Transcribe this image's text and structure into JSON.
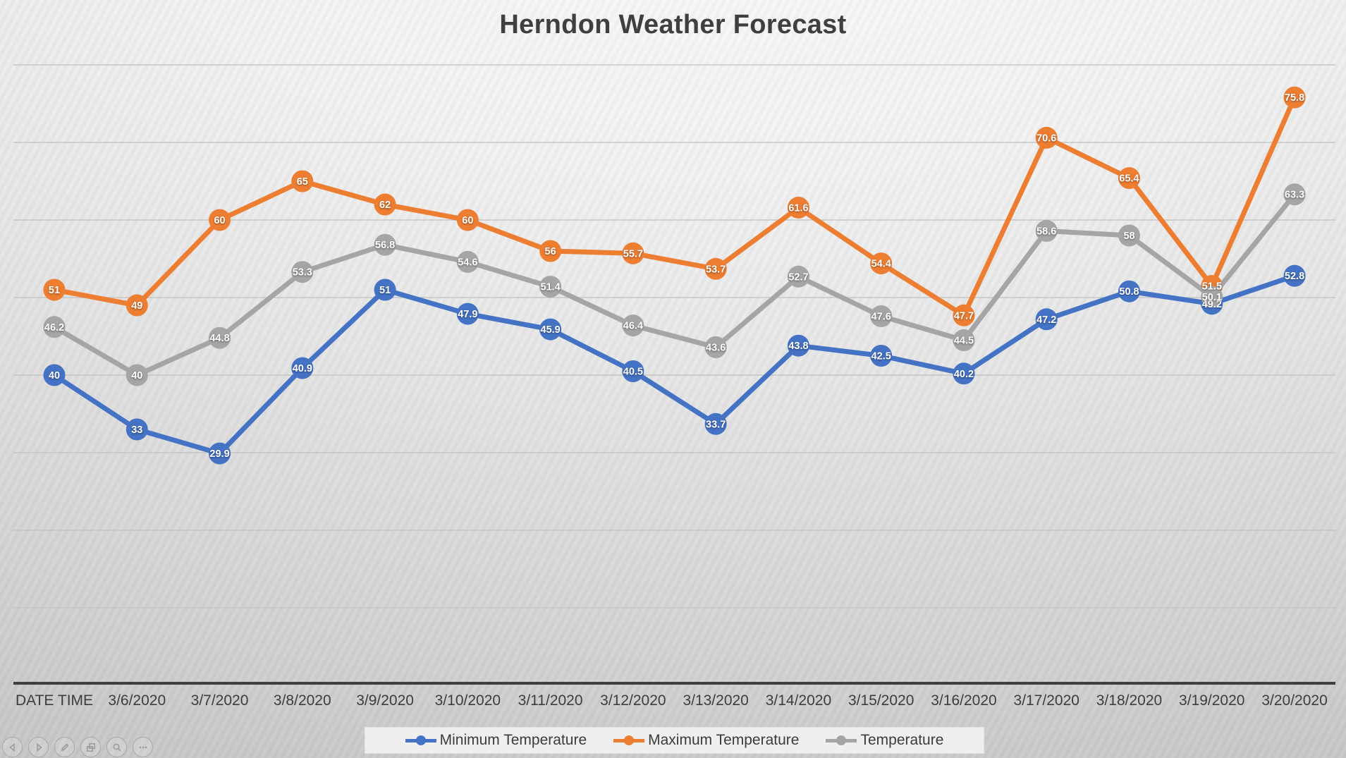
{
  "slide": {
    "title": "Herndon Weather Forecast"
  },
  "chart_data": {
    "type": "line",
    "title": "Herndon Weather Forecast",
    "categories": [
      "DATE TIME",
      "3/6/2020",
      "3/7/2020",
      "3/8/2020",
      "3/9/2020",
      "3/10/2020",
      "3/11/2020",
      "3/12/2020",
      "3/13/2020",
      "3/14/2020",
      "3/15/2020",
      "3/16/2020",
      "3/17/2020",
      "3/18/2020",
      "3/19/2020",
      "3/20/2020"
    ],
    "series": [
      {
        "name": "Minimum Temperature",
        "color": "#4472C4",
        "values": [
          40,
          33,
          29.9,
          40.9,
          51,
          47.9,
          45.9,
          40.5,
          33.7,
          43.8,
          42.5,
          40.2,
          47.2,
          50.8,
          49.2,
          52.8
        ]
      },
      {
        "name": "Maximum Temperature",
        "color": "#ED7D31",
        "values": [
          51,
          49,
          60,
          65,
          62,
          60,
          56,
          55.7,
          53.7,
          61.6,
          54.4,
          47.7,
          70.6,
          65.4,
          51.5,
          75.8
        ]
      },
      {
        "name": "Temperature",
        "color": "#A5A5A5",
        "values": [
          46.2,
          40,
          44.8,
          53.3,
          56.8,
          54.6,
          51.4,
          46.4,
          43.6,
          52.7,
          47.6,
          44.5,
          58.6,
          58,
          50.1,
          63.3
        ]
      }
    ],
    "xlabel": "",
    "ylabel": "",
    "ylim": [
      0,
      80
    ],
    "ytick_interval": 10,
    "y_axis_labels_visible": false,
    "grid": "horizontal",
    "legend_position": "bottom",
    "data_labels": "center-on-marker"
  },
  "nav_controls": {
    "icons": [
      "previous-slide-icon",
      "next-slide-icon",
      "pen-icon",
      "see-all-slides-icon",
      "zoom-icon",
      "more-options-icon"
    ]
  }
}
